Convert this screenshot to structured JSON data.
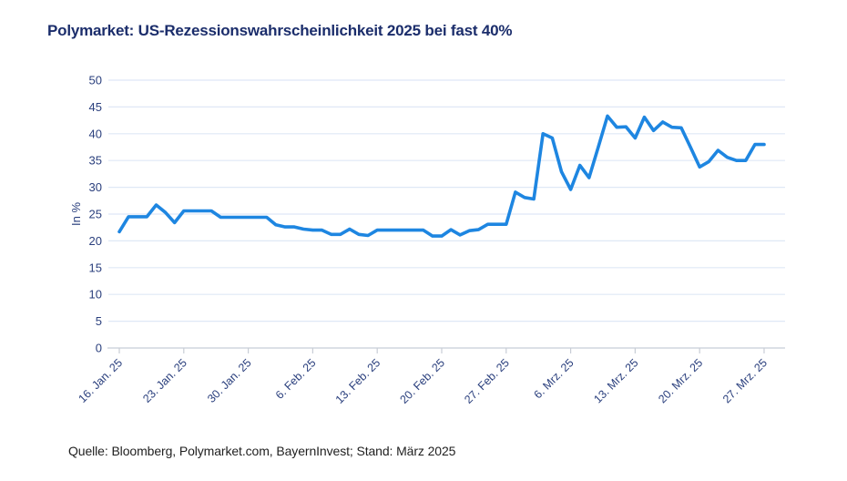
{
  "title": "Polymarket: US-Rezessionswahrscheinlichkeit 2025 bei fast 40%",
  "source_note": "Quelle: Bloomberg, Polymarket.com, BayernInvest; Stand: März 2025",
  "colors": {
    "line": "#1E86E1",
    "title_text": "#1B2D6B",
    "axis_text": "#2A3F7D",
    "gridline": "#DFE8F6",
    "axis_line": "#C8CDD6",
    "source_text": "#1F1F1F",
    "background": "#FFFFFF"
  },
  "chart_data": {
    "type": "line",
    "title": "Polymarket: US-Rezessionswahrscheinlichkeit 2025 bei fast 40%",
    "xlabel": "",
    "ylabel": "In %",
    "ylim": [
      0,
      50
    ],
    "yticks": [
      0,
      5,
      10,
      15,
      20,
      25,
      30,
      35,
      40,
      45,
      50
    ],
    "grid": "horizontal",
    "legend": "none",
    "x_unit": "daily",
    "x_tick_days": [
      0,
      7,
      14,
      21,
      28,
      35,
      42,
      49,
      56,
      63,
      70
    ],
    "x_tick_labels": [
      "16. Jan. 25",
      "23. Jan. 25",
      "30. Jan. 25",
      "6. Feb. 25",
      "13. Feb. 25",
      "20. Feb. 25",
      "27. Feb. 25",
      "6. Mrz. 25",
      "13. Mrz. 25",
      "20. Mrz. 25",
      "27. Mrz. 25"
    ],
    "dates": [
      "2025-01-16",
      "2025-01-17",
      "2025-01-18",
      "2025-01-19",
      "2025-01-20",
      "2025-01-21",
      "2025-01-22",
      "2025-01-23",
      "2025-01-24",
      "2025-01-25",
      "2025-01-26",
      "2025-01-27",
      "2025-01-28",
      "2025-01-29",
      "2025-01-30",
      "2025-01-31",
      "2025-02-01",
      "2025-02-02",
      "2025-02-03",
      "2025-02-04",
      "2025-02-05",
      "2025-02-06",
      "2025-02-07",
      "2025-02-08",
      "2025-02-09",
      "2025-02-10",
      "2025-02-11",
      "2025-02-12",
      "2025-02-13",
      "2025-02-14",
      "2025-02-15",
      "2025-02-16",
      "2025-02-17",
      "2025-02-18",
      "2025-02-19",
      "2025-02-20",
      "2025-02-21",
      "2025-02-22",
      "2025-02-23",
      "2025-02-24",
      "2025-02-25",
      "2025-02-26",
      "2025-02-27",
      "2025-02-28",
      "2025-03-01",
      "2025-03-02",
      "2025-03-03",
      "2025-03-04",
      "2025-03-05",
      "2025-03-06",
      "2025-03-07",
      "2025-03-08",
      "2025-03-09",
      "2025-03-10",
      "2025-03-11",
      "2025-03-12",
      "2025-03-13",
      "2025-03-14",
      "2025-03-15",
      "2025-03-16",
      "2025-03-17",
      "2025-03-18",
      "2025-03-19",
      "2025-03-20",
      "2025-03-21",
      "2025-03-22",
      "2025-03-23",
      "2025-03-24",
      "2025-03-25",
      "2025-03-26",
      "2025-03-27"
    ],
    "values": [
      21.7,
      24.5,
      24.5,
      24.5,
      26.7,
      25.3,
      23.4,
      25.6,
      25.6,
      25.6,
      25.6,
      24.4,
      24.4,
      24.4,
      24.4,
      24.4,
      24.4,
      23.0,
      22.6,
      22.6,
      22.2,
      22.0,
      22.0,
      21.2,
      21.2,
      22.2,
      21.2,
      21.0,
      22.0,
      22.0,
      22.0,
      22.0,
      22.0,
      22.0,
      20.9,
      20.9,
      22.1,
      21.1,
      21.9,
      22.1,
      23.1,
      23.1,
      23.1,
      29.1,
      28.1,
      27.8,
      40.0,
      39.2,
      32.9,
      29.6,
      34.1,
      31.8,
      37.5,
      43.3,
      41.2,
      41.3,
      39.2,
      43.1,
      40.6,
      42.2,
      41.2,
      41.1,
      37.5,
      33.8,
      34.8,
      36.9,
      35.6,
      35.0,
      35.0,
      38.0,
      38.0
    ]
  }
}
